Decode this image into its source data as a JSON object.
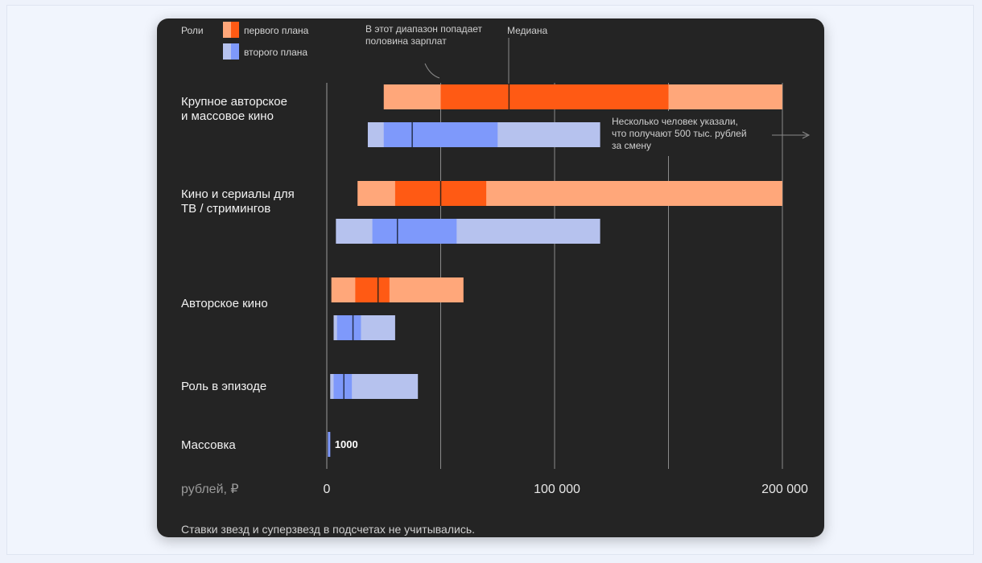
{
  "chart_data": {
    "type": "bar",
    "orientation": "horizontal",
    "subtype": "range",
    "title": "",
    "xlabel": "рублей, ₽",
    "xlim": [
      0,
      200000
    ],
    "x_ticks": [
      0,
      100000,
      200000
    ],
    "x_tick_labels": [
      "0",
      "100 000",
      "200 000"
    ],
    "grid": true,
    "legend_title": "Роли",
    "legend_placement": "top-left",
    "series": [
      {
        "name": "первого плана",
        "colors": {
          "range": "#ffa77a",
          "iqr": "#ff5a14",
          "median": "#3a2418"
        }
      },
      {
        "name": "второго плана",
        "colors": {
          "range": "#b6c2ee",
          "iqr": "#7e99fb",
          "median": "#26304f"
        }
      }
    ],
    "categories": [
      {
        "label": "Крупное авторское\nи массовое кино",
        "bars": [
          {
            "series": "первого плана",
            "min": 25000,
            "q1": 50000,
            "median": 80000,
            "q3": 150000,
            "max": 200000
          },
          {
            "series": "второго плана",
            "min": 18000,
            "q1": 25000,
            "median": 37500,
            "q3": 75000,
            "max": 120000
          }
        ]
      },
      {
        "label": "Кино и сериалы для\nТВ / стримингов",
        "bars": [
          {
            "series": "первого плана",
            "min": 13500,
            "q1": 30000,
            "median": 50000,
            "q3": 70000,
            "max": 200000
          },
          {
            "series": "второго плана",
            "min": 4000,
            "q1": 20000,
            "median": 31000,
            "q3": 57000,
            "max": 120000
          }
        ]
      },
      {
        "label": "Авторское кино",
        "bars": [
          {
            "series": "первого плана",
            "min": 2000,
            "q1": 12500,
            "median": 22500,
            "q3": 27500,
            "max": 60000
          },
          {
            "series": "второго плана",
            "min": 3000,
            "q1": 4500,
            "median": 11500,
            "q3": 15000,
            "max": 30000
          }
        ]
      },
      {
        "label": "Роль в эпизоде",
        "bars": [
          {
            "series": "второго плана",
            "min": 1500,
            "q1": 3000,
            "median": 7500,
            "q3": 11000,
            "max": 40000
          }
        ]
      },
      {
        "label": "Массовка",
        "bars": [
          {
            "series": "второго плана",
            "min": 1000,
            "q1": 1000,
            "median": 1000,
            "q3": 1000,
            "max": 1000,
            "value_label": "1000"
          }
        ]
      }
    ],
    "annotations": [
      {
        "text": "В этот диапазон попадает\nполовина зарплат"
      },
      {
        "text": "Медиана"
      },
      {
        "text": "Несколько человек указали,\nчто получают 500 тыс. рублей\nза смену"
      }
    ],
    "footnote": "Ставки звезд и суперзвезд в подсчетах не учитывались."
  }
}
